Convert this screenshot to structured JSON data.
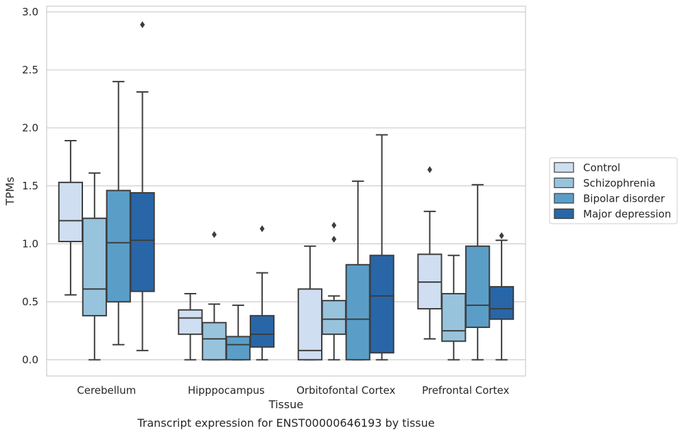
{
  "chart_data": {
    "type": "boxplot",
    "title": "",
    "caption": "Transcript expression for ENST00000646193 by tissue",
    "xlabel": "Tissue",
    "ylabel": "TPMs",
    "ylim": [
      -0.14,
      3.05
    ],
    "yticks": [
      "0.0",
      "0.5",
      "1.0",
      "1.5",
      "2.0",
      "2.5",
      "3.0"
    ],
    "ytick_values": [
      0,
      0.5,
      1.0,
      1.5,
      2.0,
      2.5,
      3.0
    ],
    "grid": "horizontal",
    "legend_position": "right",
    "categories": [
      "Cerebellum",
      "Hipppocampus",
      "Orbitofontal Cortex",
      "Prefrontal Cortex"
    ],
    "series": [
      {
        "name": "Control",
        "color": "#cfdef0",
        "boxes": [
          {
            "whislo": 0.56,
            "q1": 1.02,
            "med": 1.2,
            "q3": 1.53,
            "whishi": 1.89,
            "fliers": []
          },
          {
            "whislo": 0.0,
            "q1": 0.22,
            "med": 0.36,
            "q3": 0.43,
            "whishi": 0.57,
            "fliers": []
          },
          {
            "whislo": 0.0,
            "q1": 0.0,
            "med": 0.08,
            "q3": 0.61,
            "whishi": 0.98,
            "fliers": []
          },
          {
            "whislo": 0.18,
            "q1": 0.44,
            "med": 0.67,
            "q3": 0.91,
            "whishi": 1.28,
            "fliers": [
              1.64
            ]
          }
        ]
      },
      {
        "name": "Schizophrenia",
        "color": "#98c3dd",
        "boxes": [
          {
            "whislo": 0.0,
            "q1": 0.38,
            "med": 0.61,
            "q3": 1.22,
            "whishi": 1.61,
            "fliers": []
          },
          {
            "whislo": 0.0,
            "q1": 0.0,
            "med": 0.18,
            "q3": 0.32,
            "whishi": 0.48,
            "fliers": [
              1.08
            ]
          },
          {
            "whislo": 0.0,
            "q1": 0.22,
            "med": 0.35,
            "q3": 0.51,
            "whishi": 0.55,
            "fliers": [
              1.04,
              1.16
            ]
          },
          {
            "whislo": 0.0,
            "q1": 0.16,
            "med": 0.25,
            "q3": 0.57,
            "whishi": 0.9,
            "fliers": []
          }
        ]
      },
      {
        "name": "Bipolar disorder",
        "color": "#5a9ec8",
        "boxes": [
          {
            "whislo": 0.13,
            "q1": 0.5,
            "med": 1.01,
            "q3": 1.46,
            "whishi": 2.4,
            "fliers": []
          },
          {
            "whislo": 0.0,
            "q1": 0.0,
            "med": 0.13,
            "q3": 0.2,
            "whishi": 0.47,
            "fliers": []
          },
          {
            "whislo": 0.0,
            "q1": 0.0,
            "med": 0.35,
            "q3": 0.82,
            "whishi": 1.54,
            "fliers": []
          },
          {
            "whislo": 0.0,
            "q1": 0.28,
            "med": 0.47,
            "q3": 0.98,
            "whishi": 1.51,
            "fliers": []
          }
        ]
      },
      {
        "name": "Major depression",
        "color": "#2866a8",
        "boxes": [
          {
            "whislo": 0.08,
            "q1": 0.59,
            "med": 1.03,
            "q3": 1.44,
            "whishi": 2.31,
            "fliers": [
              2.89
            ]
          },
          {
            "whislo": 0.0,
            "q1": 0.11,
            "med": 0.22,
            "q3": 0.38,
            "whishi": 0.75,
            "fliers": [
              1.13
            ]
          },
          {
            "whislo": 0.0,
            "q1": 0.06,
            "med": 0.55,
            "q3": 0.9,
            "whishi": 1.94,
            "fliers": []
          },
          {
            "whislo": 0.0,
            "q1": 0.35,
            "med": 0.44,
            "q3": 0.63,
            "whishi": 1.03,
            "fliers": [
              1.07
            ]
          }
        ]
      }
    ]
  }
}
